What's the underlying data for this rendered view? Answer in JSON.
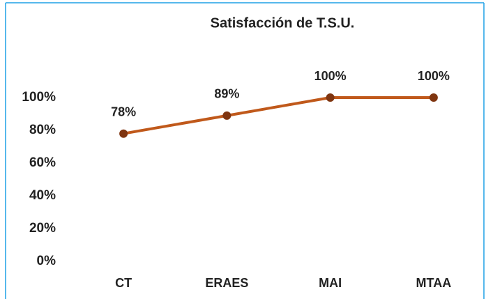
{
  "chart_data": {
    "type": "line",
    "title": "Satisfacción de T.S.U.",
    "categories": [
      "CT",
      "ERAES",
      "MAI",
      "MTAA"
    ],
    "values": [
      78,
      89,
      100,
      100
    ],
    "value_labels": [
      "78%",
      "89%",
      "100%",
      "100%"
    ],
    "color": "#c0591b",
    "marker_color": "#7f3510",
    "ylim": [
      0,
      100
    ],
    "yticks": [
      {
        "value": 0,
        "label": "0%"
      },
      {
        "value": 20,
        "label": "20%"
      },
      {
        "value": 40,
        "label": "40%"
      },
      {
        "value": 60,
        "label": "60%"
      },
      {
        "value": 80,
        "label": "80%"
      },
      {
        "value": 100,
        "label": "100%"
      }
    ],
    "grid": false
  }
}
